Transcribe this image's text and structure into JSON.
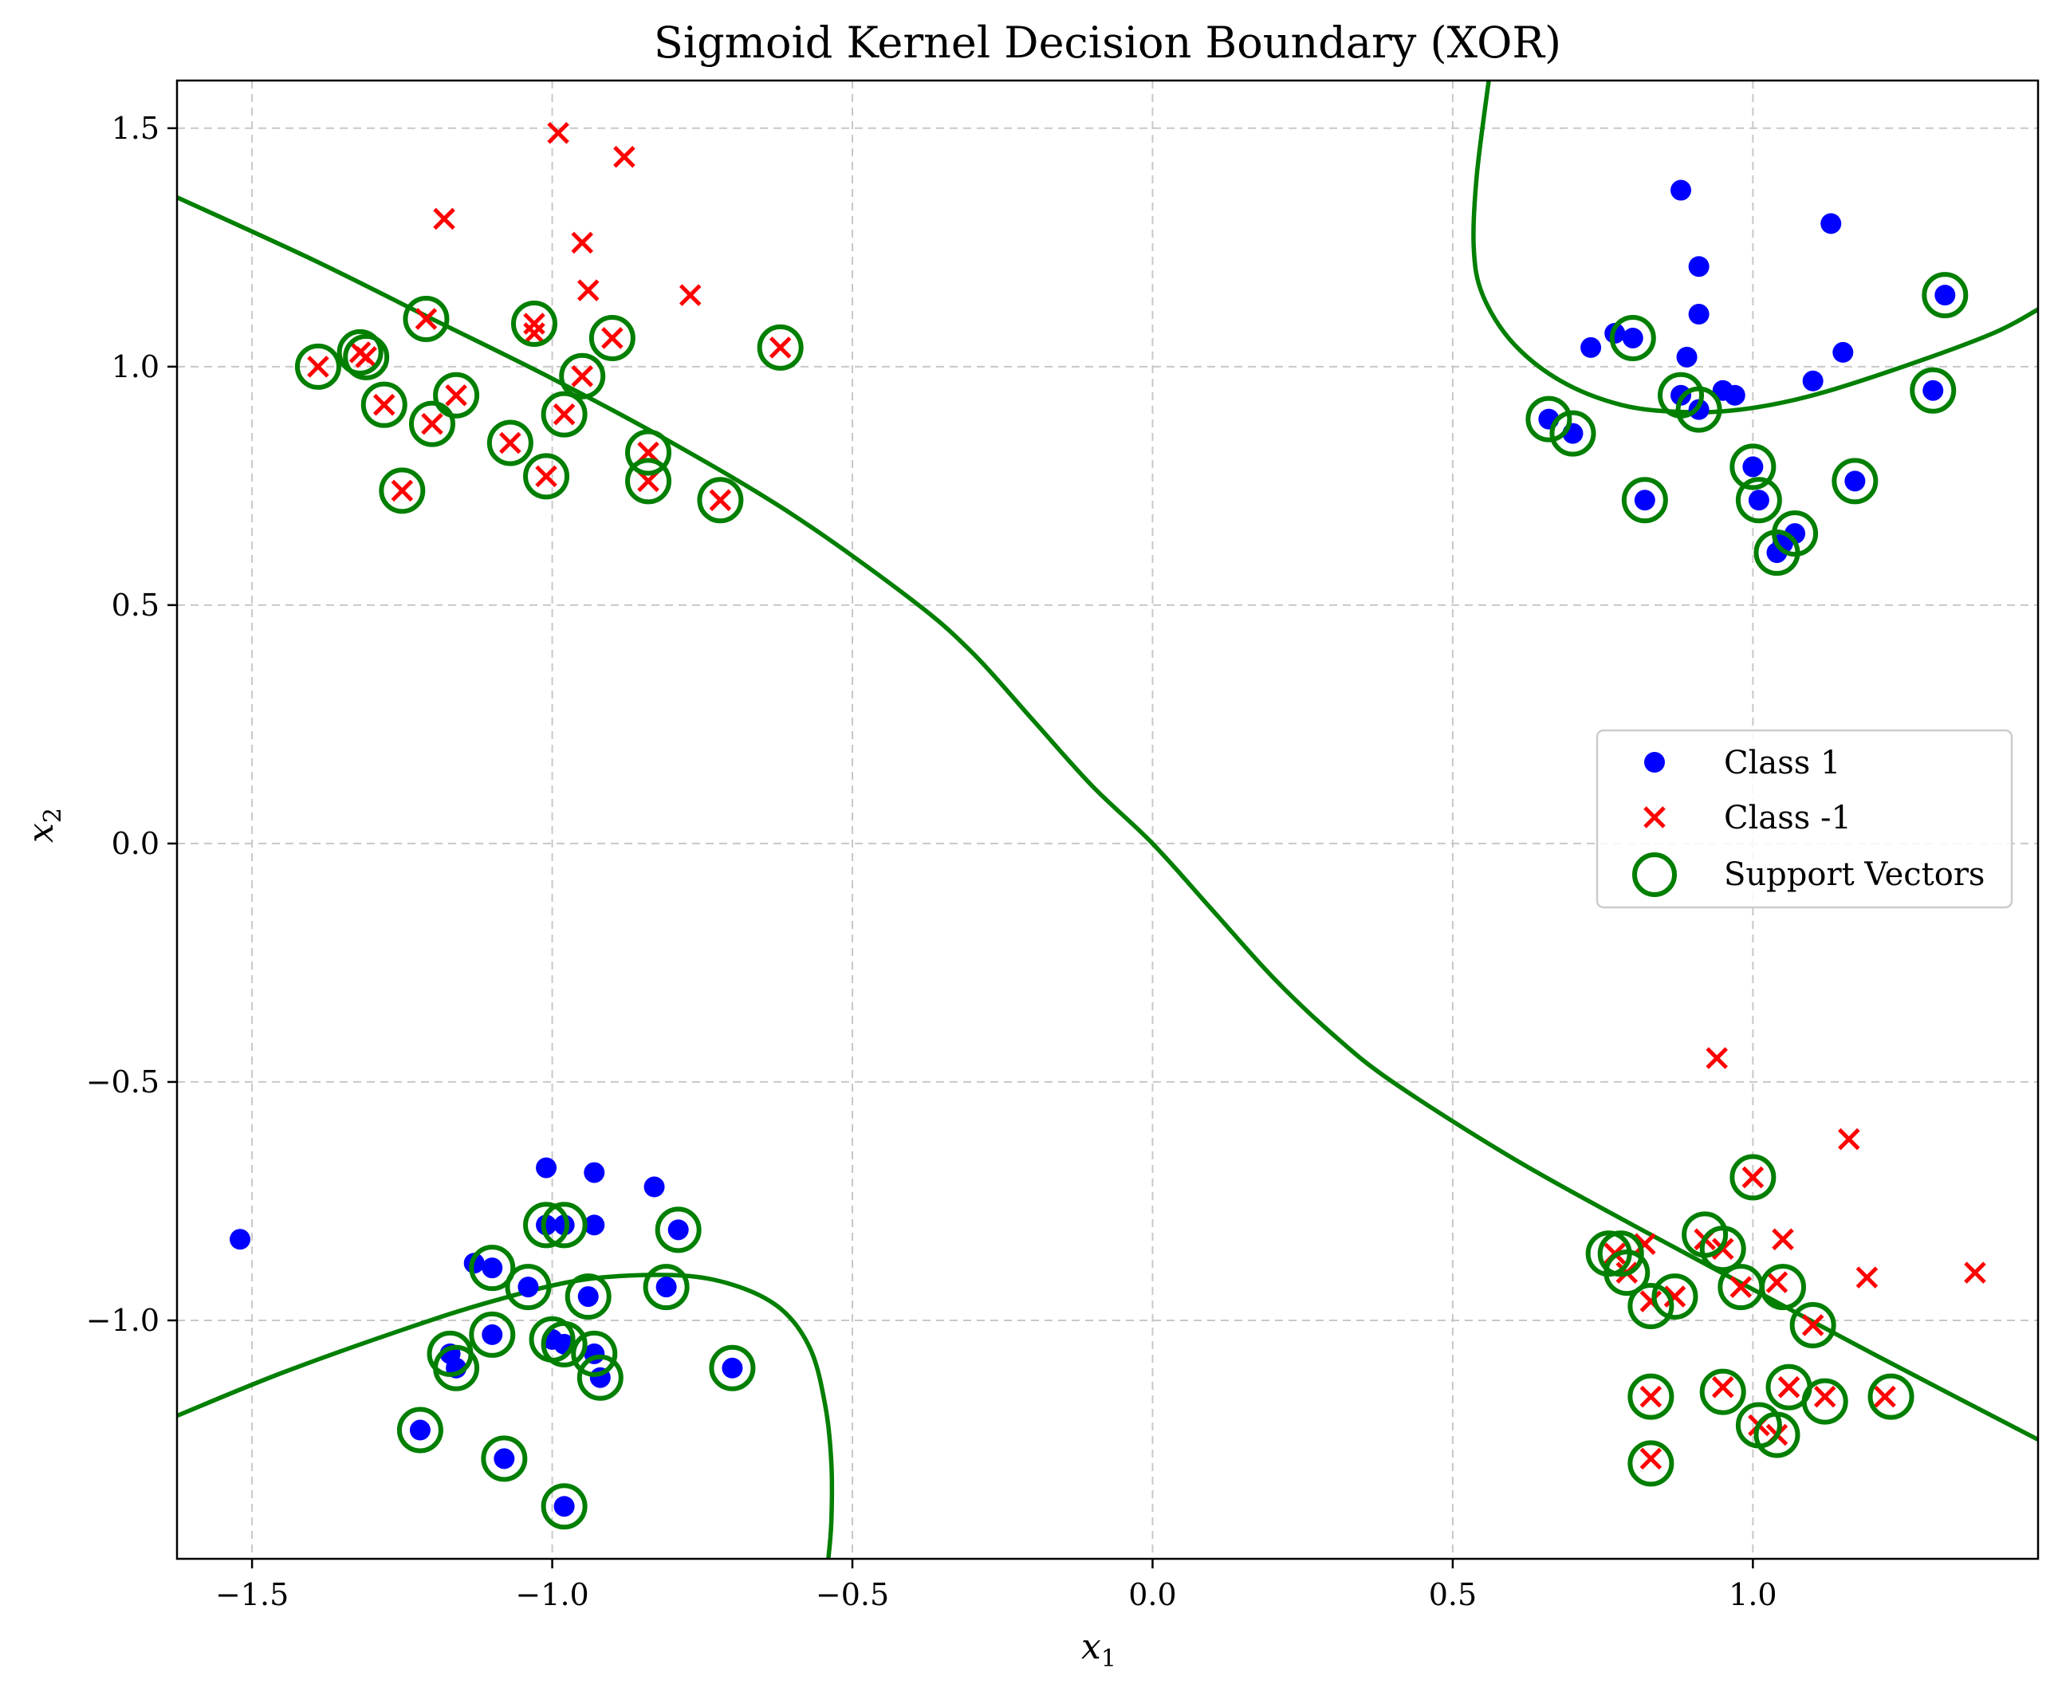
{
  "chart_data": {
    "type": "scatter",
    "title": "Sigmoid Kernel Decision Boundary (XOR)",
    "xlabel": "x",
    "xlabel_sub": "1",
    "ylabel": "x",
    "ylabel_sub": "2",
    "xlim": [
      -1.625,
      1.475
    ],
    "ylim": [
      -1.5,
      1.6
    ],
    "x_ticks": [
      -1.5,
      -1.0,
      -0.5,
      0.0,
      0.5,
      1.0
    ],
    "x_tick_labels": [
      "−1.5",
      "−1.0",
      "−0.5",
      "0.0",
      "0.5",
      "1.0"
    ],
    "y_ticks": [
      -1.0,
      -0.5,
      0.0,
      0.5,
      1.0,
      1.5
    ],
    "y_tick_labels": [
      "−1.0",
      "−0.5",
      "0.0",
      "0.5",
      "1.0",
      "1.5"
    ],
    "grid": true,
    "legend_position": "center-right",
    "colors": {
      "class_pos": "#0000ff",
      "class_neg": "#ff0000",
      "boundary": "#007f00",
      "grid": "#c8c8c8"
    },
    "series": [
      {
        "name": "Class 1",
        "marker": "circle",
        "points": [
          [
            0.88,
            1.37
          ],
          [
            1.13,
            1.3
          ],
          [
            0.91,
            1.21
          ],
          [
            0.91,
            1.11
          ],
          [
            1.32,
            1.15
          ],
          [
            0.77,
            1.07
          ],
          [
            0.8,
            1.06
          ],
          [
            0.73,
            1.04
          ],
          [
            1.15,
            1.03
          ],
          [
            0.89,
            1.02
          ],
          [
            1.1,
            0.97
          ],
          [
            1.3,
            0.95
          ],
          [
            0.95,
            0.95
          ],
          [
            0.97,
            0.94
          ],
          [
            0.88,
            0.94
          ],
          [
            0.91,
            0.91
          ],
          [
            0.66,
            0.89
          ],
          [
            0.7,
            0.86
          ],
          [
            1.0,
            0.79
          ],
          [
            1.17,
            0.76
          ],
          [
            0.82,
            0.72
          ],
          [
            1.01,
            0.72
          ],
          [
            1.07,
            0.65
          ],
          [
            1.05,
            0.63
          ],
          [
            1.04,
            0.61
          ],
          [
            -1.52,
            -0.83
          ],
          [
            -1.01,
            -0.68
          ],
          [
            -0.93,
            -0.69
          ],
          [
            -0.83,
            -0.72
          ],
          [
            -0.79,
            -0.81
          ],
          [
            -1.01,
            -0.8
          ],
          [
            -0.98,
            -0.8
          ],
          [
            -0.93,
            -0.8
          ],
          [
            -1.13,
            -0.88
          ],
          [
            -1.1,
            -0.89
          ],
          [
            -1.04,
            -0.93
          ],
          [
            -0.94,
            -0.95
          ],
          [
            -0.81,
            -0.93
          ],
          [
            -1.1,
            -1.03
          ],
          [
            -1.0,
            -1.04
          ],
          [
            -0.98,
            -1.05
          ],
          [
            -0.93,
            -1.07
          ],
          [
            -1.17,
            -1.07
          ],
          [
            -1.16,
            -1.1
          ],
          [
            -0.92,
            -1.12
          ],
          [
            -0.7,
            -1.1
          ],
          [
            -1.22,
            -1.23
          ],
          [
            -1.08,
            -1.29
          ],
          [
            -0.98,
            -1.39
          ]
        ]
      },
      {
        "name": "Class -1",
        "marker": "x",
        "points": [
          [
            -0.99,
            1.49
          ],
          [
            -0.88,
            1.44
          ],
          [
            -1.18,
            1.31
          ],
          [
            -0.95,
            1.26
          ],
          [
            -0.94,
            1.16
          ],
          [
            -0.77,
            1.15
          ],
          [
            -1.21,
            1.1
          ],
          [
            -1.03,
            1.09
          ],
          [
            -1.03,
            1.07
          ],
          [
            -0.9,
            1.06
          ],
          [
            -0.62,
            1.04
          ],
          [
            -1.32,
            1.03
          ],
          [
            -1.31,
            1.02
          ],
          [
            -1.39,
            1.0
          ],
          [
            -0.95,
            0.98
          ],
          [
            -1.16,
            0.94
          ],
          [
            -1.28,
            0.92
          ],
          [
            -0.98,
            0.9
          ],
          [
            -1.2,
            0.88
          ],
          [
            -1.07,
            0.84
          ],
          [
            -0.84,
            0.82
          ],
          [
            -1.01,
            0.77
          ],
          [
            -0.84,
            0.76
          ],
          [
            -1.25,
            0.74
          ],
          [
            -0.72,
            0.72
          ],
          [
            0.94,
            -0.45
          ],
          [
            1.16,
            -0.62
          ],
          [
            1.0,
            -0.7
          ],
          [
            0.92,
            -0.83
          ],
          [
            1.05,
            -0.83
          ],
          [
            0.82,
            -0.84
          ],
          [
            0.95,
            -0.85
          ],
          [
            0.77,
            -0.86
          ],
          [
            0.79,
            -0.9
          ],
          [
            1.04,
            -0.92
          ],
          [
            0.98,
            -0.93
          ],
          [
            1.19,
            -0.91
          ],
          [
            1.37,
            -0.9
          ],
          [
            0.87,
            -0.95
          ],
          [
            0.83,
            -0.96
          ],
          [
            1.1,
            -1.01
          ],
          [
            0.95,
            -1.14
          ],
          [
            1.06,
            -1.14
          ],
          [
            0.83,
            -1.16
          ],
          [
            1.12,
            -1.16
          ],
          [
            1.22,
            -1.16
          ],
          [
            1.01,
            -1.22
          ],
          [
            1.04,
            -1.24
          ],
          [
            0.83,
            -1.29
          ]
        ]
      },
      {
        "name": "Support Vectors",
        "marker": "ring",
        "points": [
          [
            1.32,
            1.15
          ],
          [
            0.8,
            1.06
          ],
          [
            1.3,
            0.95
          ],
          [
            0.88,
            0.94
          ],
          [
            0.91,
            0.91
          ],
          [
            0.66,
            0.89
          ],
          [
            0.7,
            0.86
          ],
          [
            1.0,
            0.79
          ],
          [
            1.17,
            0.76
          ],
          [
            0.82,
            0.72
          ],
          [
            1.01,
            0.72
          ],
          [
            1.07,
            0.65
          ],
          [
            1.04,
            0.61
          ],
          [
            -1.21,
            1.1
          ],
          [
            -1.03,
            1.09
          ],
          [
            -0.9,
            1.06
          ],
          [
            -0.62,
            1.04
          ],
          [
            -1.32,
            1.03
          ],
          [
            -1.31,
            1.02
          ],
          [
            -1.39,
            1.0
          ],
          [
            -0.95,
            0.98
          ],
          [
            -1.16,
            0.94
          ],
          [
            -1.28,
            0.92
          ],
          [
            -0.98,
            0.9
          ],
          [
            -1.2,
            0.88
          ],
          [
            -1.07,
            0.84
          ],
          [
            -0.84,
            0.82
          ],
          [
            -1.01,
            0.77
          ],
          [
            -0.84,
            0.76
          ],
          [
            -1.25,
            0.74
          ],
          [
            -0.72,
            0.72
          ],
          [
            -1.01,
            -0.8
          ],
          [
            -0.98,
            -0.8
          ],
          [
            -0.79,
            -0.81
          ],
          [
            -1.1,
            -0.89
          ],
          [
            -1.04,
            -0.93
          ],
          [
            -0.94,
            -0.95
          ],
          [
            -0.81,
            -0.93
          ],
          [
            -1.1,
            -1.03
          ],
          [
            -1.0,
            -1.04
          ],
          [
            -0.98,
            -1.05
          ],
          [
            -0.93,
            -1.07
          ],
          [
            -1.17,
            -1.07
          ],
          [
            -1.16,
            -1.1
          ],
          [
            -0.92,
            -1.12
          ],
          [
            -0.7,
            -1.1
          ],
          [
            -1.22,
            -1.23
          ],
          [
            -1.08,
            -1.29
          ],
          [
            -0.98,
            -1.39
          ],
          [
            1.0,
            -0.7
          ],
          [
            0.92,
            -0.82
          ],
          [
            0.95,
            -0.85
          ],
          [
            0.78,
            -0.86
          ],
          [
            0.76,
            -0.86
          ],
          [
            0.79,
            -0.9
          ],
          [
            1.05,
            -0.93
          ],
          [
            0.98,
            -0.93
          ],
          [
            0.87,
            -0.95
          ],
          [
            0.83,
            -0.97
          ],
          [
            1.1,
            -1.01
          ],
          [
            0.95,
            -1.15
          ],
          [
            1.06,
            -1.14
          ],
          [
            0.83,
            -1.16
          ],
          [
            1.12,
            -1.17
          ],
          [
            1.23,
            -1.16
          ],
          [
            1.01,
            -1.22
          ],
          [
            1.04,
            -1.24
          ],
          [
            0.83,
            -1.3
          ]
        ]
      }
    ],
    "decision_boundary": [
      [
        [
          -1.625,
          1.355
        ],
        [
          -1.4,
          1.225
        ],
        [
          -1.2,
          1.1
        ],
        [
          -1.0,
          0.975
        ],
        [
          -0.8,
          0.84
        ],
        [
          -0.6,
          0.69
        ],
        [
          -0.4,
          0.51
        ],
        [
          -0.3,
          0.4
        ],
        [
          -0.2,
          0.26
        ],
        [
          -0.1,
          0.12
        ],
        [
          0.0,
          0.0
        ],
        [
          0.1,
          -0.14
        ],
        [
          0.2,
          -0.28
        ],
        [
          0.3,
          -0.4
        ],
        [
          0.4,
          -0.5
        ],
        [
          0.6,
          -0.66
        ],
        [
          0.8,
          -0.8
        ],
        [
          1.0,
          -0.935
        ],
        [
          1.2,
          -1.07
        ],
        [
          1.475,
          -1.25
        ]
      ],
      [
        [
          0.56,
          1.6
        ],
        [
          0.54,
          1.4
        ],
        [
          0.535,
          1.25
        ],
        [
          0.55,
          1.15
        ],
        [
          0.6,
          1.05
        ],
        [
          0.68,
          0.97
        ],
        [
          0.78,
          0.92
        ],
        [
          0.88,
          0.905
        ],
        [
          0.98,
          0.91
        ],
        [
          1.1,
          0.94
        ],
        [
          1.25,
          1.0
        ],
        [
          1.4,
          1.07
        ],
        [
          1.475,
          1.12
        ]
      ],
      [
        [
          -1.625,
          -1.2
        ],
        [
          -1.45,
          -1.11
        ],
        [
          -1.25,
          -1.02
        ],
        [
          -1.1,
          -0.96
        ],
        [
          -0.95,
          -0.915
        ],
        [
          -0.8,
          -0.905
        ],
        [
          -0.7,
          -0.925
        ],
        [
          -0.62,
          -0.975
        ],
        [
          -0.57,
          -1.06
        ],
        [
          -0.545,
          -1.18
        ],
        [
          -0.535,
          -1.3
        ],
        [
          -0.535,
          -1.42
        ],
        [
          -0.54,
          -1.5
        ]
      ]
    ]
  }
}
